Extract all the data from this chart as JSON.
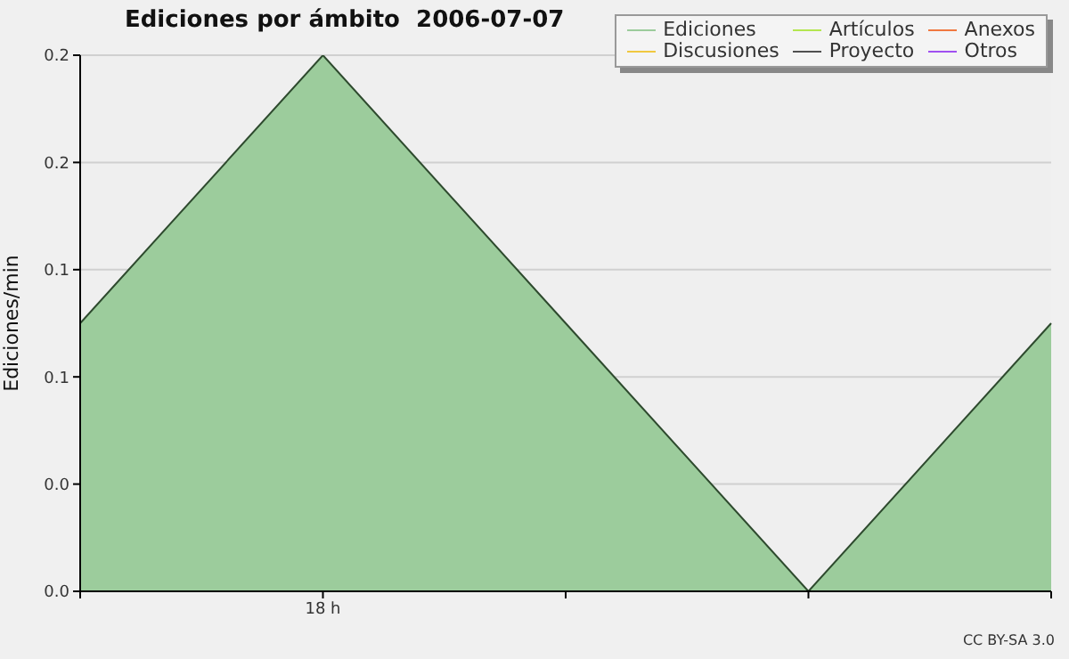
{
  "chart_data": {
    "type": "area",
    "title": "Ediciones por ámbito  2006-07-07",
    "ylabel": "Ediciones/min",
    "annotations": [
      "CC BY-SA 3.0"
    ],
    "categories": [
      null,
      "18 h",
      null,
      null,
      null
    ],
    "series": [
      {
        "name": "Ediciones",
        "color": "#9ccc9c",
        "values": [
          0.125,
          0.25,
          0.125,
          0,
          0.125
        ]
      },
      {
        "name": "Artículos",
        "color": "#b4e650",
        "values": [
          null,
          null,
          null,
          null,
          null
        ]
      },
      {
        "name": "Anexos",
        "color": "#f07840",
        "values": [
          null,
          null,
          null,
          null,
          null
        ]
      },
      {
        "name": "Discusiones",
        "color": "#f0c840",
        "values": [
          null,
          null,
          null,
          null,
          null
        ]
      },
      {
        "name": "Proyecto",
        "color": "#505050",
        "values": [
          null,
          null,
          null,
          null,
          null
        ]
      },
      {
        "name": "Otros",
        "color": "#a050f0",
        "values": [
          null,
          null,
          null,
          null,
          null
        ]
      }
    ],
    "ylim": [
      0,
      0.25
    ],
    "yticks": [
      {
        "value": 0,
        "label": "0.0"
      },
      {
        "value": 0.05,
        "label": "0.0"
      },
      {
        "value": 0.1,
        "label": "0.1"
      },
      {
        "value": 0.15,
        "label": "0.1"
      },
      {
        "value": 0.2,
        "label": "0.2"
      },
      {
        "value": 0.25,
        "label": "0.2"
      }
    ],
    "grid": "y",
    "legend": "top right"
  }
}
